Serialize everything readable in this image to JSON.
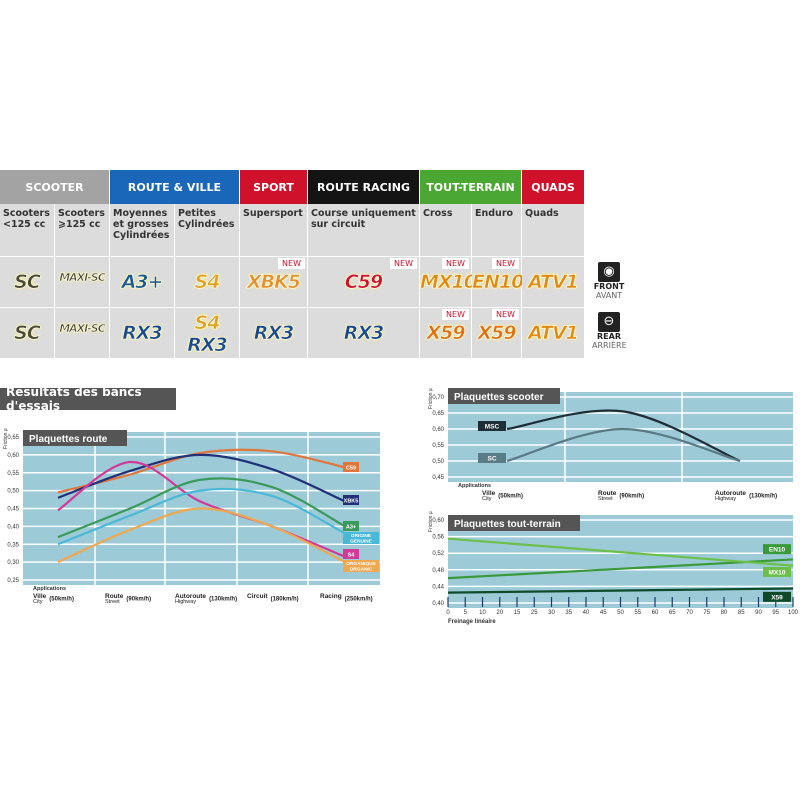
{
  "table": {
    "categories": [
      {
        "label": "SCOOTER",
        "color": "#a3a3a3"
      },
      {
        "label": "ROUTE & VILLE",
        "color": "#1a66b8"
      },
      {
        "label": "SPORT",
        "color": "#d0112b"
      },
      {
        "label": "ROUTE RACING",
        "color": "#141414"
      },
      {
        "label": "TOUT-TERRAIN",
        "color": "#4aa832"
      },
      {
        "label": "QUADS",
        "color": "#d0112b"
      }
    ],
    "columns": [
      {
        "desc": "Scooters <125 cc",
        "front": "SC",
        "rear": "SC",
        "front_new": "",
        "rear_new": ""
      },
      {
        "desc": "Scooters ⩾125 cc",
        "front": "MAXI-SC",
        "rear": "MAXI-SC",
        "front_new": "",
        "rear_new": ""
      },
      {
        "desc": "Moyennes et grosses Cylindrées",
        "front": "A3+",
        "rear": "RX3",
        "front_new": "",
        "rear_new": ""
      },
      {
        "desc": "Petites Cylindrées",
        "front": "S4",
        "rear": "S4 RX3",
        "front_new": "",
        "rear_new": ""
      },
      {
        "desc": "Supersport",
        "front": "XBK5",
        "rear": "RX3",
        "front_new": "NEW",
        "rear_new": ""
      },
      {
        "desc": "Course uniquement sur circuit",
        "front": "C59",
        "rear": "RX3",
        "front_new": "NEW",
        "rear_new": ""
      },
      {
        "desc": "Cross",
        "front": "MX10",
        "rear": "X59",
        "front_new": "NEW",
        "rear_new": "NEW"
      },
      {
        "desc": "Enduro",
        "front": "EN10",
        "rear": "X59",
        "front_new": "NEW",
        "rear_new": "NEW"
      },
      {
        "desc": "Quads",
        "front": "ATV1",
        "rear": "ATV1",
        "front_new": "",
        "rear_new": ""
      }
    ],
    "front": {
      "label": "FRONT",
      "sub": "AVANT",
      "icon": "front-disc-icon"
    },
    "rear": {
      "label": "REAR",
      "sub": "ARRIÈRE",
      "icon": "rear-disc-icon"
    }
  },
  "section_title": "Résultats des bancs d'essais",
  "chart_data": [
    {
      "type": "line",
      "title": "Plaquettes route",
      "ylabel": "Friction µ",
      "xlabel": "Applications",
      "ylim": [
        0.25,
        0.65
      ],
      "yticks": [
        "0,25",
        "0,30",
        "0,35",
        "0,40",
        "0,45",
        "0,50",
        "0,55",
        "0,60",
        "0,65"
      ],
      "categories": [
        {
          "main": "Ville",
          "sub": "City",
          "speed": "(50km/h)"
        },
        {
          "main": "Route",
          "sub": "Street",
          "speed": "(90km/h)"
        },
        {
          "main": "Autoroute",
          "sub": "Highway",
          "speed": "(130km/h)"
        },
        {
          "main": "Circuit",
          "sub": "",
          "speed": "(180km/h)"
        },
        {
          "main": "Racing",
          "sub": "",
          "speed": "(250km/h)"
        }
      ],
      "series": [
        {
          "name": "C59",
          "color": "#e0763a",
          "values": [
            0.495,
            0.545,
            0.605,
            0.61,
            0.565
          ]
        },
        {
          "name": "XBK5",
          "color": "#22307a",
          "values": [
            0.48,
            0.555,
            0.6,
            0.56,
            0.47
          ]
        },
        {
          "name": "S4",
          "color": "#d23a9a",
          "values": [
            0.445,
            0.58,
            0.47,
            0.4,
            0.315
          ]
        },
        {
          "name": "A3+",
          "color": "#3a9a5a",
          "values": [
            0.37,
            0.45,
            0.53,
            0.51,
            0.4
          ]
        },
        {
          "name": "ORIGINE GENUINE",
          "color": "#4ab8d8",
          "values": [
            0.35,
            0.43,
            0.5,
            0.485,
            0.38
          ]
        },
        {
          "name": "ORGANIQUE ORGANIC",
          "color": "#f0a850",
          "values": [
            0.3,
            0.39,
            0.45,
            0.4,
            0.3
          ]
        }
      ]
    },
    {
      "type": "line",
      "title": "Plaquettes scooter",
      "ylabel": "Friction µ",
      "xlabel": "Applications",
      "ylim": [
        0.45,
        0.7
      ],
      "yticks": [
        "0,45",
        "0,50",
        "0,55",
        "0,60",
        "0,65",
        "0,70"
      ],
      "categories": [
        {
          "main": "Ville",
          "sub": "City",
          "speed": "(50km/h)"
        },
        {
          "main": "Route",
          "sub": "Street",
          "speed": "(90km/h)"
        },
        {
          "main": "Autoroute",
          "sub": "Highway",
          "speed": "(130km/h)"
        }
      ],
      "series": [
        {
          "name": "MSC",
          "color": "#1e2e36",
          "values": [
            0.6,
            0.655,
            0.5
          ]
        },
        {
          "name": "SC",
          "color": "#5a7a86",
          "values": [
            0.5,
            0.6,
            0.5
          ]
        }
      ]
    },
    {
      "type": "line",
      "title": "Plaquettes tout-terrain",
      "ylabel": "Friction µ",
      "xlabel": "Freinage linéaire",
      "ylim": [
        0.4,
        0.6
      ],
      "yticks": [
        "0,40",
        "0,44",
        "0,48",
        "0,52",
        "0,56",
        "0,60"
      ],
      "xticks": [
        "0",
        "5",
        "10",
        "20",
        "15",
        "25",
        "30",
        "35",
        "40",
        "45",
        "50",
        "55",
        "60",
        "65",
        "70",
        "75",
        "80",
        "85",
        "90",
        "95",
        "100"
      ],
      "series": [
        {
          "name": "EN10",
          "color": "#3a9a3a",
          "x": [
            0,
            100
          ],
          "values": [
            0.46,
            0.505
          ]
        },
        {
          "name": "MX10",
          "color": "#6cc04a",
          "x": [
            0,
            100
          ],
          "values": [
            0.555,
            0.49
          ]
        },
        {
          "name": "X59",
          "color": "#0e4a2a",
          "x": [
            0,
            100
          ],
          "values": [
            0.425,
            0.435
          ]
        }
      ]
    }
  ]
}
